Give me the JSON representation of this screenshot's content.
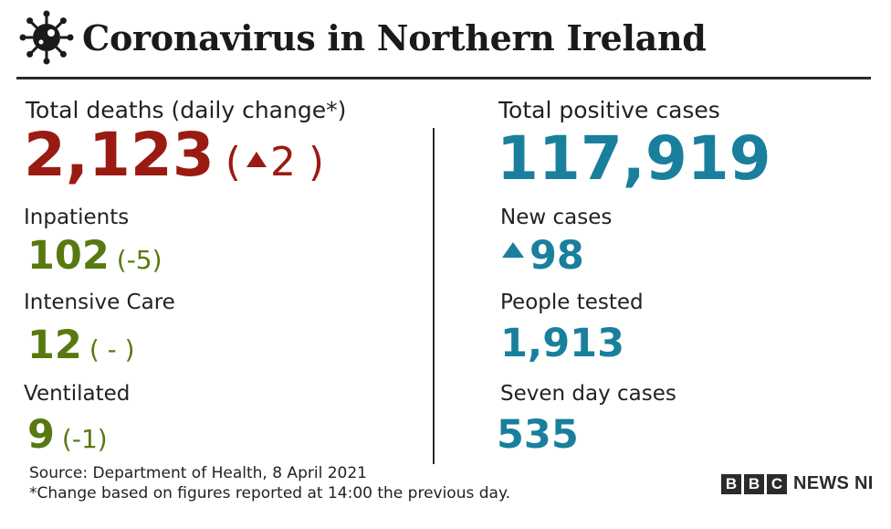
{
  "header": {
    "title": "Coronavirus in Northern Ireland",
    "icon": "virus-icon"
  },
  "left": {
    "deaths": {
      "label": "Total deaths (daily change*)",
      "value": "2,123",
      "change": "2",
      "change_direction": "up"
    },
    "inpatients": {
      "label": "Inpatients",
      "value": "102",
      "change": "(-5)"
    },
    "intensive_care": {
      "label": "Intensive Care",
      "value": "12",
      "change": "( - )"
    },
    "ventilated": {
      "label": "Ventilated",
      "value": "9",
      "change": "(-1)"
    }
  },
  "right": {
    "total_cases": {
      "label": "Total positive cases",
      "value": "117,919"
    },
    "new_cases": {
      "label": "New cases",
      "value": "98",
      "direction": "up"
    },
    "people_tested": {
      "label": "People tested",
      "value": "1,913"
    },
    "seven_day": {
      "label": "Seven day cases",
      "value": "535"
    }
  },
  "footer": {
    "source": "Source: Department of Health, 8 April 2021",
    "note": "*Change based on figures reported at 14:00 the previous day.",
    "brand_letters": [
      "B",
      "B",
      "C"
    ],
    "brand_text": "NEWS NI"
  },
  "colors": {
    "deaths": "#9a1b12",
    "hospital": "#58790f",
    "cases": "#197f9d"
  }
}
